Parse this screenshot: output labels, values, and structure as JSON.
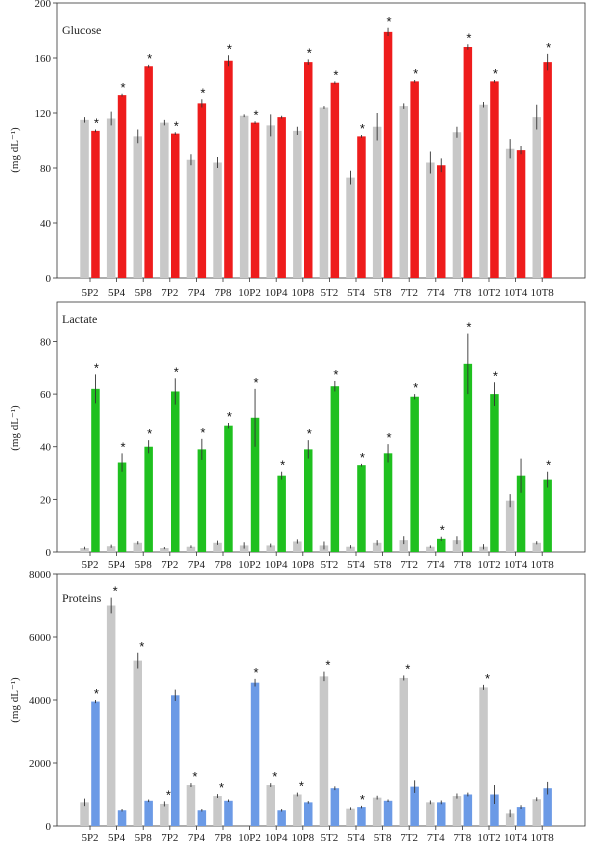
{
  "chart_data": [
    {
      "type": "bar",
      "title": "Glucose",
      "ylabel": "(mg dL⁻¹)",
      "ylim": [
        0,
        200
      ],
      "yticks": [
        0,
        40,
        80,
        120,
        160,
        200
      ],
      "categories": [
        "5P2",
        "5P4",
        "5P8",
        "7P2",
        "7P4",
        "7P8",
        "10P2",
        "10P4",
        "10P8",
        "5T2",
        "5T4",
        "5T8",
        "7T2",
        "7T4",
        "7T8",
        "10T2",
        "10T4",
        "10T8"
      ],
      "series": [
        {
          "color": "#c8c8c8",
          "values": [
            115,
            116,
            103,
            113,
            86,
            84,
            118,
            111,
            107,
            124,
            73,
            110,
            125,
            84,
            106,
            126,
            94,
            117
          ],
          "errors": [
            2,
            5,
            5,
            2,
            4,
            4,
            1,
            8,
            3,
            1,
            5,
            10,
            2,
            8,
            4,
            2,
            7,
            9
          ]
        },
        {
          "color": "#ee1c1c",
          "values": [
            107,
            133,
            154,
            105,
            127,
            158,
            113,
            117,
            157,
            142,
            103,
            179,
            143,
            82,
            168,
            143,
            93,
            157
          ],
          "errors": [
            1,
            1,
            1,
            1,
            3,
            4,
            1,
            1,
            2,
            1,
            1,
            3,
            1,
            5,
            2,
            1,
            3,
            6
          ]
        }
      ],
      "significant": [
        true,
        true,
        true,
        true,
        true,
        true,
        true,
        false,
        true,
        true,
        true,
        true,
        true,
        false,
        true,
        true,
        false,
        true
      ],
      "grid": false,
      "legend": "none"
    },
    {
      "type": "bar",
      "title": "Lactate",
      "ylabel": "(mg dL⁻¹)",
      "ylim": [
        0,
        95
      ],
      "yticks": [
        0,
        20,
        40,
        60,
        80
      ],
      "categories": [
        "5P2",
        "5P4",
        "5P8",
        "7P2",
        "7P4",
        "7P8",
        "10P2",
        "10P4",
        "10P8",
        "5T2",
        "5T4",
        "5T8",
        "7T2",
        "7T4",
        "7T8",
        "10T2",
        "10T4",
        "10T8"
      ],
      "series": [
        {
          "color": "#c8c8c8",
          "values": [
            1.5,
            2.2,
            3.5,
            1.5,
            2,
            3.5,
            2.5,
            2.5,
            4,
            2.5,
            2,
            3.5,
            4.5,
            2,
            4.5,
            2,
            19.5,
            3.5
          ],
          "errors": [
            0.5,
            0.6,
            0.6,
            0.4,
            0.5,
            0.8,
            1.2,
            0.7,
            0.8,
            1.5,
            0.6,
            1,
            1.5,
            0.5,
            1.5,
            1,
            2.5,
            0.6
          ]
        },
        {
          "color": "#1fc01f",
          "values": [
            62,
            34,
            40,
            61,
            39,
            48,
            51,
            29,
            39,
            63,
            33,
            37.5,
            59,
            5,
            71.5,
            60,
            29,
            27.5
          ],
          "errors": [
            5.5,
            3.5,
            2.5,
            5,
            4,
            1,
            11,
            1.5,
            3.5,
            2,
            0.5,
            3.5,
            1,
            0.8,
            11.5,
            4.5,
            6.5,
            3
          ]
        }
      ],
      "significant": [
        true,
        true,
        true,
        true,
        true,
        true,
        true,
        true,
        true,
        true,
        true,
        true,
        true,
        true,
        true,
        true,
        false,
        true
      ],
      "grid": false,
      "legend": "none"
    },
    {
      "type": "bar",
      "title": "Proteins",
      "ylabel": "(mg dL⁻¹)",
      "ylim": [
        0,
        8000
      ],
      "yticks": [
        0,
        2000,
        4000,
        6000,
        8000
      ],
      "categories": [
        "5P2",
        "5P4",
        "5P8",
        "7P2",
        "7P4",
        "7P8",
        "10P2",
        "10P4",
        "10P8",
        "5T2",
        "5T4",
        "5T8",
        "7T2",
        "7T4",
        "7T8",
        "10T2",
        "10T4",
        "10T8"
      ],
      "series": [
        {
          "color": "#c8c8c8",
          "values": [
            750,
            7000,
            5250,
            700,
            1300,
            950,
            0,
            1300,
            1000,
            4750,
            550,
            900,
            4700,
            750,
            950,
            4400,
            400,
            850
          ],
          "errors": [
            120,
            250,
            250,
            80,
            60,
            60,
            0,
            60,
            60,
            150,
            40,
            60,
            80,
            60,
            80,
            80,
            120,
            60
          ]
        },
        {
          "color": "#6b9ae6",
          "values": [
            3950,
            500,
            800,
            4150,
            500,
            800,
            4550,
            500,
            750,
            1200,
            600,
            800,
            1250,
            750,
            1000,
            1000,
            600,
            1200
          ],
          "errors": [
            50,
            40,
            40,
            180,
            40,
            40,
            120,
            40,
            40,
            60,
            40,
            40,
            200,
            60,
            60,
            300,
            60,
            200
          ]
        }
      ],
      "significant": [
        true,
        true,
        true,
        true,
        true,
        true,
        true,
        true,
        true,
        true,
        true,
        false,
        true,
        false,
        false,
        true,
        false,
        false
      ],
      "significant_series": [
        1,
        0,
        0,
        0,
        0,
        0,
        1,
        0,
        0,
        0,
        1,
        0,
        0,
        0,
        0,
        0,
        0,
        0
      ],
      "grid": false,
      "legend": "none"
    }
  ]
}
